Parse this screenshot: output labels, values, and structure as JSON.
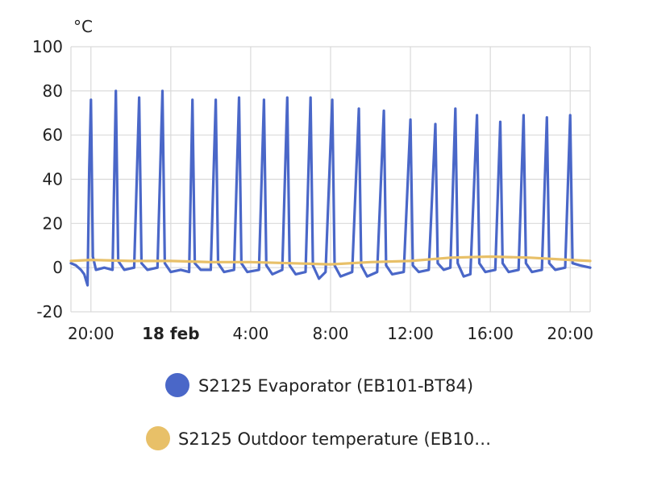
{
  "chart_data": {
    "type": "line",
    "title": "",
    "ylabel": "°C",
    "ylim": [
      -20,
      100
    ],
    "yticks": [
      "100",
      "80",
      "60",
      "40",
      "20",
      "0",
      "-20"
    ],
    "xlim": [
      "17 feb 19:00",
      "18 feb 21:00"
    ],
    "xticks": [
      {
        "label": "20:00",
        "bold": false,
        "time": "17 feb 20:00"
      },
      {
        "label": "18 feb",
        "bold": true,
        "time": "18 feb 00:00"
      },
      {
        "label": "4:00",
        "bold": false,
        "time": "18 feb 04:00"
      },
      {
        "label": "8:00",
        "bold": false,
        "time": "18 feb 08:00"
      },
      {
        "label": "12:00",
        "bold": false,
        "time": "18 feb 12:00"
      },
      {
        "label": "16:00",
        "bold": false,
        "time": "18 feb 16:00"
      },
      {
        "label": "20:00",
        "bold": false,
        "time": "18 feb 20:00"
      }
    ],
    "grid": true,
    "legend_position": "bottom",
    "series": [
      {
        "name": "S2125 Evaporator (EB101-BT84)",
        "color": "#4a67c8",
        "points": [
          [
            "17 feb 19:00",
            2
          ],
          [
            "17 feb 19:15",
            1
          ],
          [
            "17 feb 19:30",
            -1
          ],
          [
            "17 feb 19:40",
            -3
          ],
          [
            "17 feb 19:50",
            -8
          ],
          [
            "17 feb 19:55",
            45
          ],
          [
            "17 feb 20:00",
            76
          ],
          [
            "17 feb 20:06",
            5
          ],
          [
            "17 feb 20:15",
            -1
          ],
          [
            "17 feb 20:40",
            0
          ],
          [
            "17 feb 21:05",
            -1
          ],
          [
            "17 feb 21:15",
            80
          ],
          [
            "17 feb 21:22",
            3
          ],
          [
            "17 feb 21:40",
            -1
          ],
          [
            "17 feb 22:10",
            0
          ],
          [
            "17 feb 22:25",
            77
          ],
          [
            "17 feb 22:32",
            2
          ],
          [
            "17 feb 22:50",
            -1
          ],
          [
            "17 feb 23:20",
            0
          ],
          [
            "17 feb 23:35",
            80
          ],
          [
            "17 feb 23:42",
            2
          ],
          [
            "18 feb 00:00",
            -2
          ],
          [
            "18 feb 00:30",
            -1
          ],
          [
            "18 feb 00:55",
            -2
          ],
          [
            "18 feb 01:05",
            76
          ],
          [
            "18 feb 01:12",
            2
          ],
          [
            "18 feb 01:30",
            -1
          ],
          [
            "18 feb 02:00",
            -1
          ],
          [
            "18 feb 02:15",
            76
          ],
          [
            "18 feb 02:22",
            2
          ],
          [
            "18 feb 02:40",
            -2
          ],
          [
            "18 feb 03:10",
            -1
          ],
          [
            "18 feb 03:25",
            77
          ],
          [
            "18 feb 03:32",
            2
          ],
          [
            "18 feb 03:50",
            -2
          ],
          [
            "18 feb 04:25",
            -1
          ],
          [
            "18 feb 04:40",
            76
          ],
          [
            "18 feb 04:47",
            1
          ],
          [
            "18 feb 05:05",
            -3
          ],
          [
            "18 feb 05:35",
            -1
          ],
          [
            "18 feb 05:50",
            77
          ],
          [
            "18 feb 05:57",
            1
          ],
          [
            "18 feb 06:15",
            -3
          ],
          [
            "18 feb 06:45",
            -2
          ],
          [
            "18 feb 07:00",
            77
          ],
          [
            "18 feb 07:07",
            1
          ],
          [
            "18 feb 07:25",
            -5
          ],
          [
            "18 feb 07:45",
            -2
          ],
          [
            "18 feb 08:05",
            76
          ],
          [
            "18 feb 08:12",
            1
          ],
          [
            "18 feb 08:30",
            -4
          ],
          [
            "18 feb 09:05",
            -2
          ],
          [
            "18 feb 09:25",
            72
          ],
          [
            "18 feb 09:32",
            1
          ],
          [
            "18 feb 09:50",
            -4
          ],
          [
            "18 feb 10:20",
            -2
          ],
          [
            "18 feb 10:40",
            71
          ],
          [
            "18 feb 10:47",
            1
          ],
          [
            "18 feb 11:05",
            -3
          ],
          [
            "18 feb 11:40",
            -2
          ],
          [
            "18 feb 12:00",
            67
          ],
          [
            "18 feb 12:07",
            1
          ],
          [
            "18 feb 12:25",
            -2
          ],
          [
            "18 feb 12:55",
            -1
          ],
          [
            "18 feb 13:15",
            65
          ],
          [
            "18 feb 13:22",
            2
          ],
          [
            "18 feb 13:40",
            -1
          ],
          [
            "18 feb 14:00",
            0
          ],
          [
            "18 feb 14:15",
            72
          ],
          [
            "18 feb 14:22",
            2
          ],
          [
            "18 feb 14:40",
            -4
          ],
          [
            "18 feb 15:00",
            -3
          ],
          [
            "18 feb 15:20",
            69
          ],
          [
            "18 feb 15:27",
            2
          ],
          [
            "18 feb 15:45",
            -2
          ],
          [
            "18 feb 16:15",
            -1
          ],
          [
            "18 feb 16:30",
            66
          ],
          [
            "18 feb 16:37",
            2
          ],
          [
            "18 feb 16:55",
            -2
          ],
          [
            "18 feb 17:25",
            -1
          ],
          [
            "18 feb 17:40",
            69
          ],
          [
            "18 feb 17:47",
            2
          ],
          [
            "18 feb 18:05",
            -2
          ],
          [
            "18 feb 18:35",
            -1
          ],
          [
            "18 feb 18:50",
            68
          ],
          [
            "18 feb 18:57",
            2
          ],
          [
            "18 feb 19:15",
            -1
          ],
          [
            "18 feb 19:45",
            0
          ],
          [
            "18 feb 20:00",
            69
          ],
          [
            "18 feb 20:07",
            2
          ],
          [
            "18 feb 20:30",
            1
          ],
          [
            "18 feb 21:00",
            0
          ]
        ]
      },
      {
        "name": "S2125 Outdoor temperature (EB10…",
        "color": "#e8c068",
        "points": [
          [
            "17 feb 19:00",
            3
          ],
          [
            "17 feb 20:00",
            3.5
          ],
          [
            "17 feb 22:00",
            3
          ],
          [
            "18 feb 00:00",
            3
          ],
          [
            "18 feb 02:00",
            2.5
          ],
          [
            "18 feb 04:00",
            2.5
          ],
          [
            "18 feb 06:00",
            2
          ],
          [
            "18 feb 08:00",
            1.5
          ],
          [
            "18 feb 10:00",
            2.5
          ],
          [
            "18 feb 12:00",
            3
          ],
          [
            "18 feb 14:00",
            4.5
          ],
          [
            "18 feb 16:00",
            5
          ],
          [
            "18 feb 18:00",
            4.5
          ],
          [
            "18 feb 20:00",
            3.5
          ],
          [
            "18 feb 21:00",
            3
          ]
        ]
      }
    ]
  }
}
